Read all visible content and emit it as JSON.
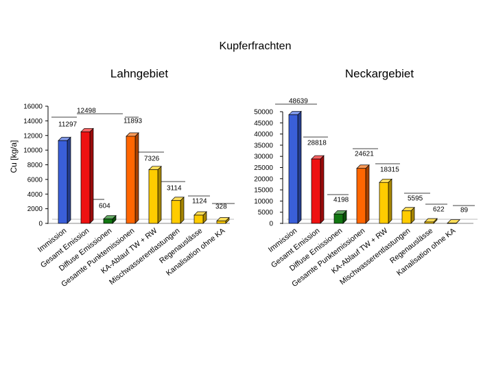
{
  "title": "Kupferfrachten",
  "charts": [
    {
      "type": "bar",
      "subtitle": "Lahngebiet",
      "ylabel": "Cu [kg/a]",
      "ylim": [
        0,
        16000
      ],
      "yticks": [
        0,
        2000,
        4000,
        6000,
        8000,
        10000,
        12000,
        14000,
        16000
      ],
      "categories": [
        "Immission",
        "Gesamt Emission",
        "Diffuse Emissionen",
        "Gesamte Punktemissionen",
        "KA-Ablauf TW + RW",
        "Mischwasserentlastungen",
        "Regenauslässe",
        "Kanalisation ohne KA"
      ],
      "values": [
        11297,
        12498,
        604,
        11893,
        7326,
        3114,
        1124,
        328
      ],
      "labels": [
        "11297",
        "12498",
        "604",
        "11893",
        "7326",
        "3114",
        "1124",
        "328"
      ],
      "colors": [
        "#3a5fd9",
        "#ee1111",
        "#117711",
        "#ff6600",
        "#ffcc00",
        "#ffcc00",
        "#ffcc00",
        "#ffcc00"
      ]
    },
    {
      "type": "bar",
      "subtitle": "Neckargebiet",
      "ylabel": "",
      "ylim": [
        0,
        50000
      ],
      "yticks": [
        0,
        5000,
        10000,
        15000,
        20000,
        25000,
        30000,
        35000,
        40000,
        45000,
        50000
      ],
      "categories": [
        "Immission",
        "Gesamt Emission",
        "Diffuse Emissionen",
        "Gesamte Punktemissionen",
        "KA-Ablauf TW + RW",
        "Mischwasserentlastungen",
        "Regenauslässe",
        "Kanalisation ohne KA"
      ],
      "values": [
        48639,
        28818,
        4198,
        24621,
        18315,
        5595,
        622,
        89
      ],
      "labels": [
        "48639",
        "28818",
        "4198",
        "24621",
        "18315",
        "5595",
        "622",
        "89"
      ],
      "colors": [
        "#3a5fd9",
        "#ee1111",
        "#117711",
        "#ff6600",
        "#ffcc00",
        "#ffcc00",
        "#ffcc00",
        "#ffcc00"
      ]
    }
  ]
}
